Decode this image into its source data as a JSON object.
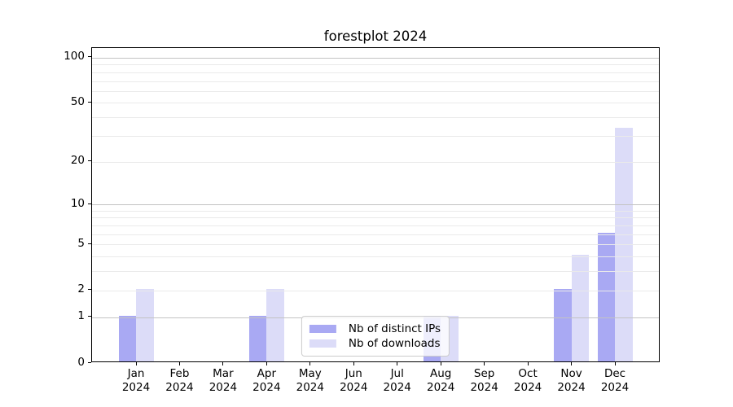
{
  "figure_title": "forestplot 2024",
  "chart_data": {
    "type": "bar",
    "title": "forestplot 2024",
    "categories": [
      "Jan",
      "Feb",
      "Mar",
      "Apr",
      "May",
      "Jun",
      "Jul",
      "Aug",
      "Sep",
      "Oct",
      "Nov",
      "Dec"
    ],
    "category_year": "2024",
    "series": [
      {
        "name": "Nb of distinct IPs",
        "color": "#a9a9f3",
        "values": [
          1,
          0,
          0,
          1,
          0,
          0,
          0,
          1,
          0,
          0,
          2,
          6
        ]
      },
      {
        "name": "Nb of downloads",
        "color": "#dcdcf8",
        "values": [
          2,
          0,
          0,
          2,
          0,
          0,
          0,
          1,
          0,
          0,
          4,
          33
        ]
      }
    ],
    "xlabel": "",
    "ylabel": "",
    "yscale": "log1p",
    "ylim": [
      0,
      116
    ],
    "y_major_ticks": [
      0,
      1,
      2,
      5,
      10,
      20,
      50,
      100
    ],
    "y_decade_gridlines": [
      1,
      10,
      100
    ],
    "y_minor_gridlines": [
      2,
      3,
      4,
      5,
      6,
      7,
      8,
      9,
      20,
      30,
      40,
      50,
      60,
      70,
      80,
      90
    ],
    "grid": true,
    "legend_position": "lower center"
  },
  "colors": {
    "bar_distinct_ips": "#a9a9f3",
    "bar_downloads": "#dcdcf8",
    "grid_decade": "#c3c3c3",
    "grid_minor": "#eaeaea",
    "spine": "#000000",
    "legend_border": "#cccccc",
    "text": "#000000"
  }
}
